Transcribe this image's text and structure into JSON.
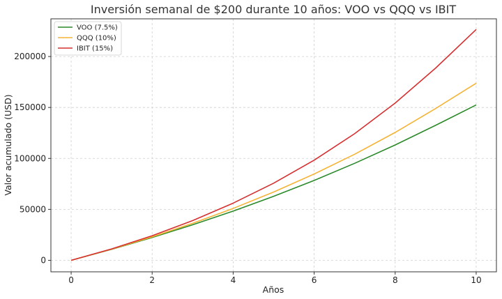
{
  "chart_data": {
    "type": "line",
    "title": "Inversión semanal de $200 durante 10 años: VOO vs QQQ vs IBIT",
    "xlabel": "Años",
    "ylabel": "Valor acumulado (USD)",
    "xlim": [
      -0.5,
      10.5
    ],
    "ylim": [
      -11300,
      237000
    ],
    "xticks": [
      0,
      2,
      4,
      6,
      8,
      10
    ],
    "yticks": [
      0,
      50000,
      100000,
      150000,
      200000
    ],
    "grid": true,
    "legend_position": "top-left",
    "x": [
      0,
      1,
      2,
      3,
      4,
      5,
      6,
      7,
      8,
      9,
      10
    ],
    "series": [
      {
        "name": "VOO (7.5%)",
        "color": "#2a8a2a",
        "values": [
          0,
          10780,
          22400,
          34900,
          48300,
          62800,
          78400,
          95200,
          113200,
          132500,
          152500
        ]
      },
      {
        "name": "QQQ (10%)",
        "color": "#f5b335",
        "values": [
          0,
          10950,
          23000,
          36300,
          50900,
          67000,
          84700,
          104100,
          125500,
          149000,
          173800
        ]
      },
      {
        "name": "IBIT (15%)",
        "color": "#d62f2f",
        "values": [
          0,
          11200,
          24100,
          39000,
          56100,
          75700,
          98300,
          124300,
          154300,
          188700,
          226500
        ]
      }
    ]
  }
}
